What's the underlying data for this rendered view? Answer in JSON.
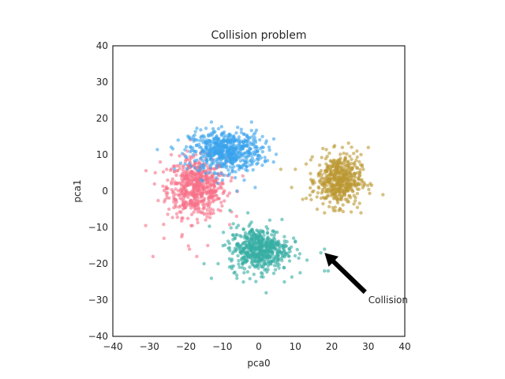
{
  "chart_data": {
    "type": "scatter",
    "title": "Collision problem",
    "xlabel": "pca0",
    "ylabel": "pca1",
    "xlim": [
      -40,
      40
    ],
    "ylim": [
      -40,
      40
    ],
    "xticks": [
      -40,
      -30,
      -20,
      -10,
      0,
      10,
      20,
      30,
      40
    ],
    "yticks": [
      -40,
      -30,
      -20,
      -10,
      0,
      10,
      20,
      30,
      40
    ],
    "grid": false,
    "series": [
      {
        "color": "#f77189",
        "center": [
          -17,
          1
        ],
        "spread": [
          4,
          4
        ],
        "n": 600,
        "outliers": [
          [
            -31,
            -9.5
          ],
          [
            -29,
            -18
          ],
          [
            -26,
            -13
          ],
          [
            -14,
            -15
          ],
          [
            -19,
            -16
          ],
          [
            -17,
            -18
          ],
          [
            -21,
            -12
          ],
          [
            -27,
            8
          ],
          [
            -25,
            3
          ],
          [
            -24,
            10
          ]
        ]
      },
      {
        "color": "#3ba3ec",
        "center": [
          -9,
          11
        ],
        "spread": [
          5,
          2.8
        ],
        "n": 600,
        "outliers": [
          [
            -2,
            19
          ],
          [
            1,
            15
          ],
          [
            -4,
            3
          ],
          [
            -1,
            1
          ],
          [
            -13,
            19
          ],
          [
            -18,
            15
          ],
          [
            -6,
            0
          ]
        ]
      },
      {
        "color": "#bb9832",
        "center": [
          22,
          3
        ],
        "spread": [
          3,
          3.5
        ],
        "n": 500,
        "outliers": [
          [
            6,
            6
          ],
          [
            10,
            6
          ],
          [
            9,
            1
          ],
          [
            15,
            0
          ],
          [
            13,
            -2
          ],
          [
            30,
            12
          ],
          [
            34,
            -1
          ],
          [
            28,
            -6
          ],
          [
            16,
            -5
          ],
          [
            18,
            -6
          ]
        ]
      },
      {
        "color": "#36ada4",
        "center": [
          0,
          -16
        ],
        "spread": [
          4,
          3
        ],
        "n": 550,
        "outliers": [
          [
            -7,
            -9
          ],
          [
            -3,
            -6
          ],
          [
            3,
            -8
          ],
          [
            4,
            -11
          ],
          [
            10,
            -14
          ],
          [
            -15,
            -20
          ],
          [
            -13,
            -24
          ],
          [
            17,
            -17
          ],
          [
            18,
            -16
          ],
          [
            18,
            -22
          ],
          [
            19,
            -22
          ],
          [
            2,
            -28
          ],
          [
            -6,
            -24
          ],
          [
            7,
            -25
          ]
        ]
      }
    ],
    "annotation": {
      "text": "Collision",
      "xy": [
        18,
        -17
      ],
      "xytext": [
        30,
        -30
      ]
    }
  }
}
